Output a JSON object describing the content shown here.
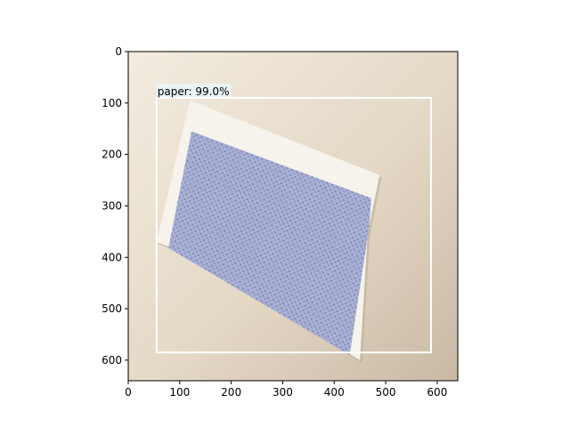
{
  "image": {
    "extent": {
      "x": [
        0,
        640
      ],
      "y": [
        0,
        640
      ]
    },
    "subject": "blue-patterned-paper-envelope-on-beige-surface",
    "colors": {
      "surface_light": "#f3ece0",
      "surface_mid": "#e4d8c6",
      "surface_dark": "#c9b9a3",
      "paper_white": "#f6f3ec",
      "pattern_blue": "#7b86b8",
      "pattern_blue_light": "#a9b0d3",
      "edge_shadow": "#b5a78f"
    }
  },
  "axes": {
    "x_ticks": [
      0,
      100,
      200,
      300,
      400,
      500,
      600
    ],
    "y_ticks": [
      0,
      100,
      200,
      300,
      400,
      500,
      600
    ],
    "x_tick_labels": [
      "0",
      "100",
      "200",
      "300",
      "400",
      "500",
      "600"
    ],
    "y_tick_labels": [
      "0",
      "100",
      "200",
      "300",
      "400",
      "500",
      "600"
    ],
    "y_inverted": true
  },
  "detection": {
    "label": "paper: 99.0%",
    "box": {
      "x1": 55,
      "y1": 90,
      "x2": 588,
      "y2": 585
    },
    "box_color": "#ffffff",
    "label_bg": "#eaf4f7"
  },
  "paper_outline": {
    "points": [
      [
        120,
        95
      ],
      [
        488,
        240
      ],
      [
        465,
        355
      ],
      [
        450,
        600
      ],
      [
        95,
        385
      ],
      [
        55,
        370
      ]
    ]
  },
  "pattern_area": {
    "points": [
      [
        123,
        155
      ],
      [
        472,
        285
      ],
      [
        468,
        340
      ],
      [
        430,
        590
      ],
      [
        78,
        382
      ]
    ]
  }
}
